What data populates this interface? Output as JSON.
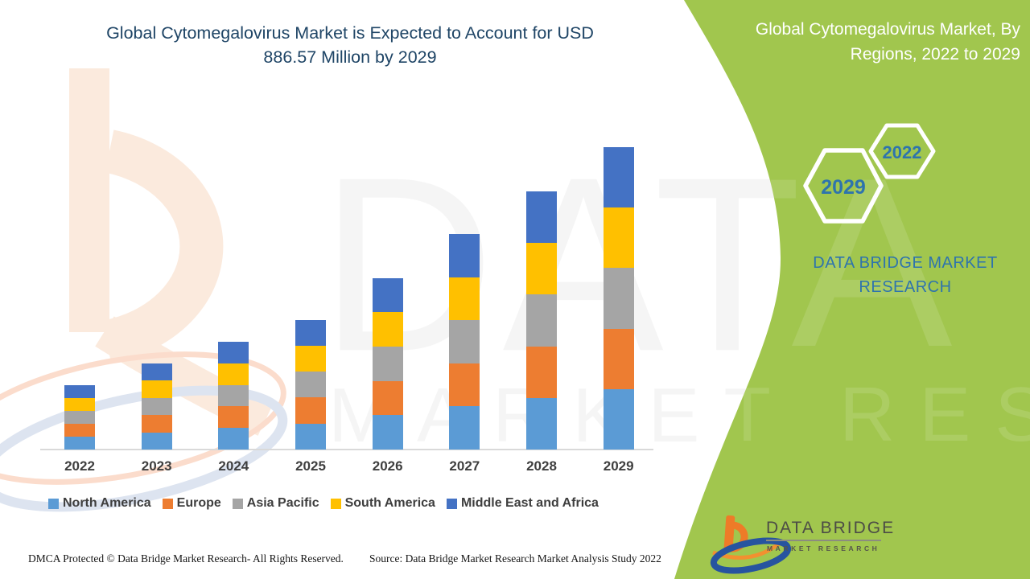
{
  "header": {
    "title_line1": "Global Cytomegalovirus Market is Expected to Account for USD",
    "title_line2": "886.57 Million by 2029"
  },
  "side_panel": {
    "title_line1": "Global Cytomegalovirus Market, By",
    "title_line2": "Regions, 2022 to 2029",
    "hexagons": [
      {
        "label": "2029"
      },
      {
        "label": "2022"
      }
    ],
    "brand_line1": "DATA BRIDGE MARKET",
    "brand_line2": "RESEARCH",
    "accent_green": "#a1c64e",
    "brand_blue": "#2e74ad"
  },
  "watermark": {
    "line1": "DATA BRIDGE",
    "line2": "MARKET RESEARCH"
  },
  "logo": {
    "name": "DATA BRIDGE",
    "subtitle": "MARKET RESEARCH"
  },
  "footer": {
    "dmca": "DMCA Protected © Data Bridge Market Research- All Rights Reserved.",
    "source": "Source: Data Bridge Market Research Market Analysis Study 2022"
  },
  "chart_data": {
    "type": "bar",
    "stacked": true,
    "title": "Global Cytomegalovirus Market, By Regions, 2022 to 2029",
    "unit": "USD Million",
    "categories": [
      "2022",
      "2023",
      "2024",
      "2025",
      "2026",
      "2027",
      "2028",
      "2029"
    ],
    "series": [
      {
        "name": "North America",
        "color": "#5b9bd5",
        "values": [
          37.7,
          50.5,
          63.2,
          76.2,
          100.7,
          126.4,
          151.4,
          177.3
        ]
      },
      {
        "name": "Europe",
        "color": "#ed7d31",
        "values": [
          37.7,
          50.5,
          63.2,
          76.2,
          100.7,
          126.4,
          151.4,
          177.3
        ]
      },
      {
        "name": "Asia Pacific",
        "color": "#a5a5a5",
        "values": [
          37.7,
          50.5,
          63.2,
          76.2,
          100.7,
          126.4,
          151.4,
          177.3
        ]
      },
      {
        "name": "South America",
        "color": "#ffc000",
        "values": [
          37.7,
          50.5,
          63.2,
          76.2,
          100.7,
          126.4,
          151.4,
          177.3
        ]
      },
      {
        "name": "Middle East and Africa",
        "color": "#4472c4",
        "values": [
          37.7,
          50.5,
          63.2,
          76.2,
          100.7,
          126.4,
          151.4,
          177.3
        ]
      }
    ],
    "totals": [
      188.6,
      252.4,
      316.1,
      380.9,
      503.5,
      632.0,
      757.0,
      886.6
    ],
    "key_value_2029": 886.57,
    "ylim": [
      0,
      900
    ],
    "grid": false,
    "y_axis_visible": false,
    "legend_position": "bottom"
  }
}
